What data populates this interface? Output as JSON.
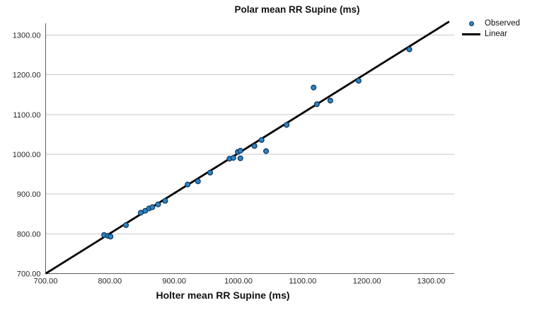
{
  "chart_data": {
    "type": "scatter",
    "title": "Polar mean RR Supine (ms)",
    "xlabel": "Holter mean RR Supine (ms)",
    "ylabel": "",
    "xlim": [
      700,
      1336
    ],
    "ylim": [
      700,
      1330
    ],
    "xticks": [
      700,
      800,
      900,
      1000,
      1100,
      1200,
      1300
    ],
    "yticks": [
      700,
      800,
      900,
      1000,
      1100,
      1200,
      1300
    ],
    "tick_label_format": "two-decimals",
    "grid": "horizontal-only",
    "legend_position": "top-right-outside",
    "series": [
      {
        "name": "Observed",
        "type": "scatter",
        "marker": "circle",
        "points": [
          [
            791,
            797
          ],
          [
            797,
            795
          ],
          [
            801,
            793
          ],
          [
            825,
            822
          ],
          [
            848,
            853
          ],
          [
            855,
            858
          ],
          [
            861,
            864
          ],
          [
            866,
            867
          ],
          [
            875,
            874
          ],
          [
            886,
            883
          ],
          [
            921,
            924
          ],
          [
            937,
            932
          ],
          [
            956,
            954
          ],
          [
            986,
            989
          ],
          [
            992,
            991
          ],
          [
            999,
            1006
          ],
          [
            1003,
            1009
          ],
          [
            1003,
            990
          ],
          [
            1025,
            1021
          ],
          [
            1036,
            1036
          ],
          [
            1043,
            1008
          ],
          [
            1075,
            1074
          ],
          [
            1117,
            1168
          ],
          [
            1122,
            1126
          ],
          [
            1143,
            1135
          ],
          [
            1187,
            1185
          ],
          [
            1266,
            1264
          ]
        ]
      },
      {
        "name": "Linear",
        "type": "line",
        "line": {
          "x1": 700,
          "y1": 700,
          "x2": 1328,
          "y2": 1334
        }
      }
    ],
    "colors": {
      "point_fill": "#2b87c8",
      "point_stroke": "#10375f",
      "line": "#000000",
      "grid": "#c9c9c9",
      "axis": "#5e5e5e",
      "text": "#262626"
    }
  }
}
